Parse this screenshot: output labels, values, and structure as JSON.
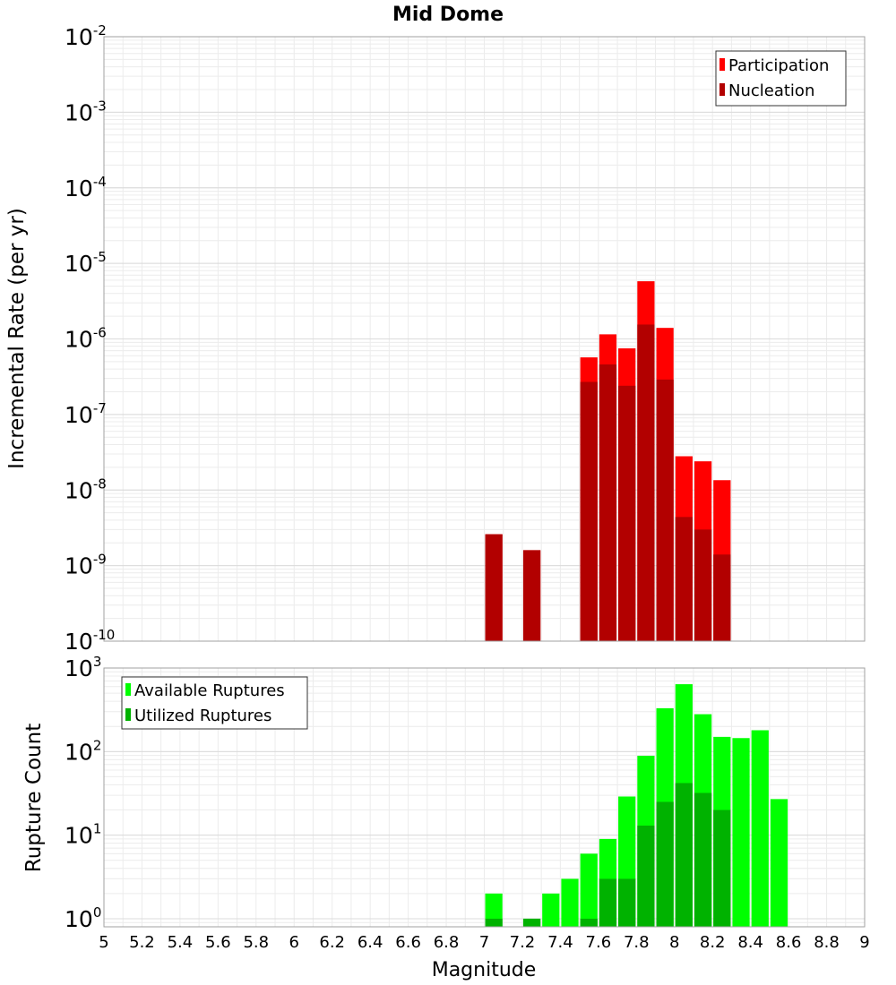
{
  "chart_data": [
    {
      "type": "bar",
      "title": "Mid Dome",
      "xlabel": "",
      "ylabel": "Incremental Rate (per yr)",
      "y_scale": "log",
      "ylim": [
        1e-10,
        0.01
      ],
      "xlim": [
        5,
        9
      ],
      "y_ticks": [
        {
          "base": "10",
          "exp": "-10"
        },
        {
          "base": "10",
          "exp": "-9"
        },
        {
          "base": "10",
          "exp": "-8"
        },
        {
          "base": "10",
          "exp": "-7"
        },
        {
          "base": "10",
          "exp": "-6"
        },
        {
          "base": "10",
          "exp": "-5"
        },
        {
          "base": "10",
          "exp": "-4"
        },
        {
          "base": "10",
          "exp": "-3"
        },
        {
          "base": "10",
          "exp": "-2"
        }
      ],
      "grid": true,
      "legend_position": "top-right",
      "bar_width": 0.1,
      "series": [
        {
          "name": "Participation",
          "color": "#ff0000",
          "x": [
            7.05,
            7.25,
            7.55,
            7.65,
            7.75,
            7.85,
            7.95,
            8.05,
            8.15,
            8.25
          ],
          "values": [
            2.6e-09,
            1.6e-09,
            5.7e-07,
            1.15e-06,
            7.5e-07,
            5.8e-06,
            1.4e-06,
            2.8e-08,
            2.4e-08,
            1.35e-08
          ]
        },
        {
          "name": "Nucleation",
          "color": "#b20000",
          "x": [
            7.05,
            7.25,
            7.55,
            7.65,
            7.75,
            7.85,
            7.95,
            8.05,
            8.15,
            8.25
          ],
          "values": [
            2.6e-09,
            1.6e-09,
            2.7e-07,
            4.6e-07,
            2.4e-07,
            1.55e-06,
            2.9e-07,
            4.4e-09,
            3e-09,
            1.4e-09
          ]
        }
      ]
    },
    {
      "type": "bar",
      "title": "",
      "xlabel": "Magnitude",
      "ylabel": "Rupture Count",
      "y_scale": "log",
      "ylim": [
        0.8,
        1000
      ],
      "xlim": [
        5,
        9
      ],
      "x_ticks": [
        "5",
        "5.2",
        "5.4",
        "5.6",
        "5.8",
        "6",
        "6.2",
        "6.4",
        "6.6",
        "6.8",
        "7",
        "7.2",
        "7.4",
        "7.6",
        "7.8",
        "8",
        "8.2",
        "8.4",
        "8.6",
        "8.8",
        "9"
      ],
      "y_ticks": [
        {
          "base": "10",
          "exp": "0"
        },
        {
          "base": "10",
          "exp": "1"
        },
        {
          "base": "10",
          "exp": "2"
        },
        {
          "base": "10",
          "exp": "3"
        }
      ],
      "grid": true,
      "legend_position": "top-left",
      "bar_width": 0.1,
      "series": [
        {
          "name": "Available Ruptures",
          "color": "#00ff00",
          "x": [
            7.05,
            7.25,
            7.35,
            7.45,
            7.55,
            7.65,
            7.75,
            7.85,
            7.95,
            8.05,
            8.15,
            8.25,
            8.35,
            8.45,
            8.55
          ],
          "values": [
            2,
            1,
            2,
            3,
            6,
            9,
            29,
            89,
            330,
            640,
            280,
            150,
            145,
            180,
            27
          ]
        },
        {
          "name": "Utilized Ruptures",
          "color": "#00b200",
          "x": [
            7.05,
            7.25,
            7.55,
            7.65,
            7.75,
            7.85,
            7.95,
            8.05,
            8.15,
            8.25
          ],
          "values": [
            1,
            1,
            1,
            3,
            3,
            13,
            25,
            42,
            32,
            20
          ]
        }
      ]
    }
  ]
}
